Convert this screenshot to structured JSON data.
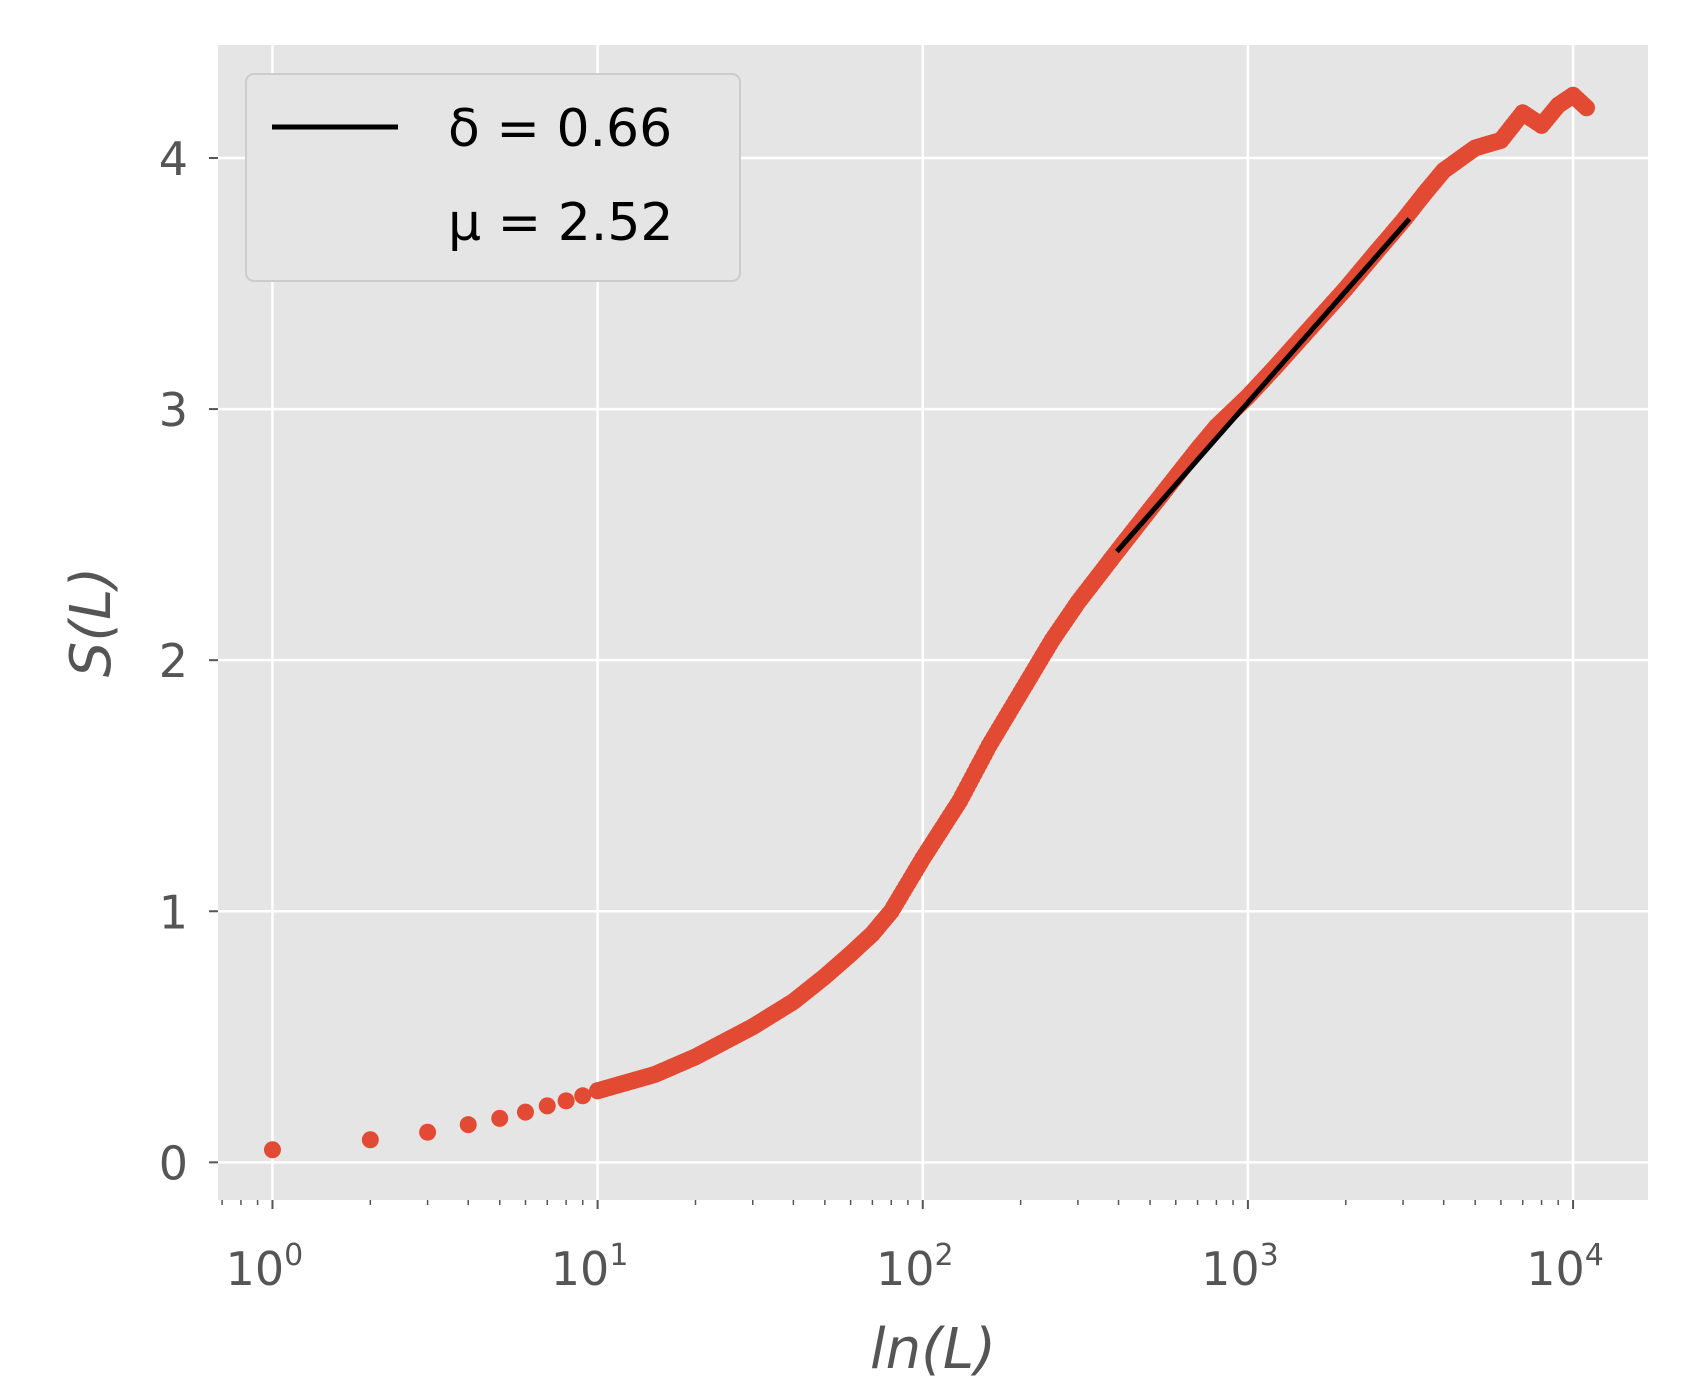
{
  "chart_data": {
    "type": "scatter",
    "xscale": "log",
    "xlabel": "ln(L)",
    "ylabel": "S(L)",
    "xlim": [
      0.68,
      17000
    ],
    "ylim": [
      -0.15,
      4.45
    ],
    "grid": true,
    "legend_position": "top-left",
    "colors": {
      "background": "#e5e5e5",
      "grid": "#ffffff",
      "points": "#e24a33",
      "fit": "#000000",
      "tick_text": "#555555"
    },
    "x_tick_labels": [
      {
        "base": "10",
        "exp": "0",
        "value": 1
      },
      {
        "base": "10",
        "exp": "1",
        "value": 10
      },
      {
        "base": "10",
        "exp": "2",
        "value": 100
      },
      {
        "base": "10",
        "exp": "3",
        "value": 1000
      },
      {
        "base": "10",
        "exp": "4",
        "value": 10000
      }
    ],
    "y_ticks": [
      0,
      1,
      2,
      3,
      4
    ],
    "y_tick_labels": [
      "0",
      "1",
      "2",
      "3",
      "4"
    ],
    "legend": [
      {
        "series": "fit",
        "label": "δ = 0.66"
      },
      {
        "series": "none",
        "label": "μ = 2.52"
      }
    ],
    "series": [
      {
        "type": "scatter",
        "discrete_points": [
          [
            1,
            0.05
          ],
          [
            2,
            0.09
          ],
          [
            3,
            0.12
          ],
          [
            4,
            0.15
          ],
          [
            5,
            0.175
          ],
          [
            6,
            0.2
          ],
          [
            7,
            0.225
          ],
          [
            8,
            0.245
          ],
          [
            9,
            0.265
          ],
          [
            10,
            0.285
          ]
        ],
        "curve_points": [
          [
            10,
            0.285
          ],
          [
            15,
            0.35
          ],
          [
            20,
            0.42
          ],
          [
            30,
            0.54
          ],
          [
            40,
            0.64
          ],
          [
            50,
            0.74
          ],
          [
            60,
            0.83
          ],
          [
            70,
            0.91
          ],
          [
            80,
            1.0
          ],
          [
            100,
            1.21
          ],
          [
            130,
            1.44
          ],
          [
            160,
            1.66
          ],
          [
            200,
            1.87
          ],
          [
            250,
            2.08
          ],
          [
            300,
            2.23
          ],
          [
            400,
            2.44
          ],
          [
            500,
            2.6
          ],
          [
            600,
            2.73
          ],
          [
            700,
            2.84
          ],
          [
            800,
            2.93
          ],
          [
            1000,
            3.05
          ],
          [
            1200,
            3.16
          ],
          [
            1500,
            3.3
          ],
          [
            2000,
            3.48
          ],
          [
            2500,
            3.63
          ],
          [
            3000,
            3.75
          ],
          [
            3500,
            3.86
          ],
          [
            4000,
            3.95
          ],
          [
            5000,
            4.04
          ],
          [
            6000,
            4.07
          ],
          [
            7000,
            4.18
          ],
          [
            8000,
            4.13
          ],
          [
            9000,
            4.21
          ],
          [
            10000,
            4.25
          ],
          [
            11000,
            4.2
          ]
        ]
      },
      {
        "type": "line",
        "name": "fit",
        "points": [
          [
            400,
            2.44
          ],
          [
            3100,
            3.75
          ]
        ]
      }
    ]
  }
}
